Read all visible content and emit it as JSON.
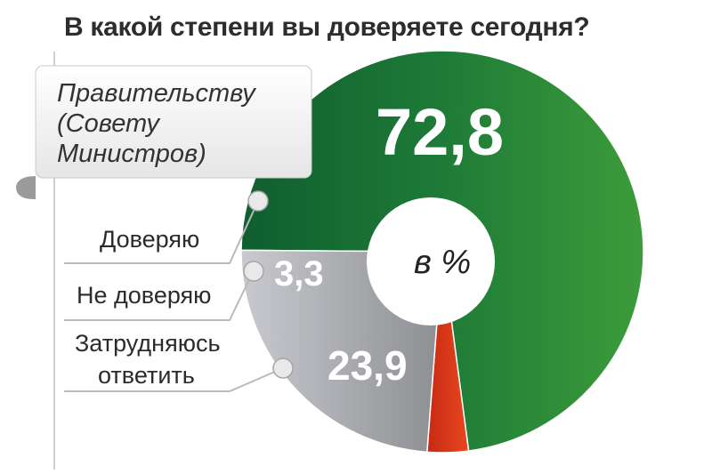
{
  "title": "В какой степени вы доверяете сегодня?",
  "ribbon": {
    "lines": [
      "Правительству",
      "(Совету",
      "Министров)"
    ]
  },
  "colors": {
    "trust": "#1d7a38",
    "distrust": "#d93a1c",
    "hard": "#a6a8ad",
    "ribbon": "#f2f2f2"
  },
  "chart_data": {
    "type": "pie",
    "title": "В какой степени вы доверяете сегодня?",
    "center_label": "в %",
    "slices": [
      {
        "label": "Доверяю",
        "value": 72.8,
        "display": "72,8"
      },
      {
        "label": "Не доверяю",
        "value": 3.3,
        "display": "3,3"
      },
      {
        "label": "Затрудняюсь ответить",
        "value": 23.9,
        "display": "23,9",
        "label_lines": [
          "Затрудняюсь",
          "ответить"
        ]
      }
    ]
  }
}
